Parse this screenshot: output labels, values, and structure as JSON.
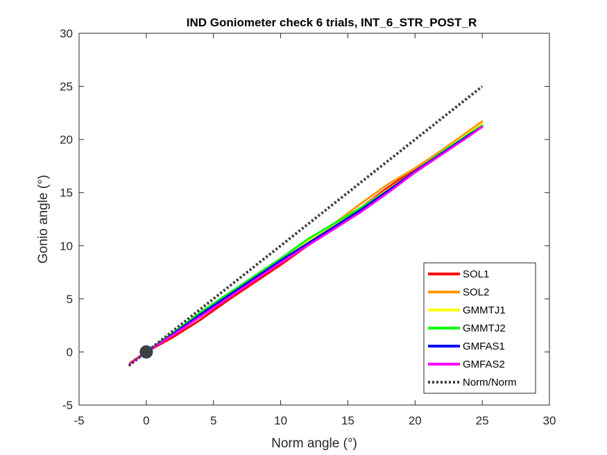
{
  "chart_data": {
    "type": "line",
    "title": "IND Goniometer check 6 trials, INT_6_STR_POST_R",
    "xlabel": "Norm angle (°)",
    "ylabel": "Gonio angle (°)",
    "xlim": [
      -5,
      30
    ],
    "ylim": [
      -5,
      30
    ],
    "xticks": [
      -5,
      0,
      5,
      10,
      15,
      20,
      25,
      30
    ],
    "yticks": [
      -5,
      0,
      5,
      10,
      15,
      20,
      25,
      30
    ],
    "grid": false,
    "legend_position": "bottom-right",
    "marker_point": {
      "x": 0,
      "y": 0,
      "color": "#404040"
    },
    "series": [
      {
        "name": "SOL1",
        "color": "#ff0000",
        "style": "solid",
        "x": [
          -1.2,
          0,
          2,
          4,
          6,
          8,
          10,
          12,
          14,
          16,
          18,
          20,
          22,
          24,
          25
        ],
        "y": [
          -1.0,
          0,
          1.4,
          3.0,
          4.8,
          6.5,
          8.2,
          10.0,
          11.8,
          13.6,
          15.5,
          17.2,
          18.8,
          20.5,
          21.3
        ]
      },
      {
        "name": "SOL2",
        "color": "#ff9900",
        "style": "solid",
        "x": [
          -1.2,
          0,
          2,
          4,
          6,
          8,
          10,
          12,
          14,
          16,
          18,
          20,
          22,
          24,
          25
        ],
        "y": [
          -1.0,
          0,
          1.7,
          3.4,
          5.1,
          6.8,
          8.5,
          10.3,
          12.1,
          14.0,
          15.8,
          17.3,
          19.0,
          20.8,
          21.7
        ]
      },
      {
        "name": "GMMTJ1",
        "color": "#ffff00",
        "style": "solid",
        "x": [
          -1.2,
          0,
          2,
          4,
          6,
          8,
          10,
          12,
          14,
          16,
          18,
          20,
          22,
          24,
          25
        ],
        "y": [
          -1.1,
          0,
          1.8,
          3.6,
          5.3,
          7.0,
          8.7,
          10.4,
          12.0,
          13.6,
          15.3,
          17.0,
          18.8,
          20.6,
          21.4
        ]
      },
      {
        "name": "GMMTJ2",
        "color": "#00ff00",
        "style": "solid",
        "x": [
          -1.2,
          0,
          2,
          4,
          6,
          8,
          10,
          12,
          14,
          16,
          18,
          20,
          22,
          24,
          25
        ],
        "y": [
          -1.1,
          0,
          1.8,
          3.7,
          5.4,
          7.1,
          8.8,
          10.6,
          12.1,
          13.6,
          15.2,
          17.0,
          18.8,
          20.5,
          21.3
        ]
      },
      {
        "name": "GMFAS1",
        "color": "#0000ff",
        "style": "solid",
        "x": [
          -1.2,
          0,
          2,
          4,
          6,
          8,
          10,
          12,
          14,
          16,
          18,
          20,
          22,
          24,
          25
        ],
        "y": [
          -1.1,
          0,
          1.7,
          3.5,
          5.2,
          6.9,
          8.6,
          10.2,
          11.8,
          13.4,
          15.2,
          17.0,
          18.7,
          20.4,
          21.2
        ]
      },
      {
        "name": "GMFAS2",
        "color": "#ff00ff",
        "style": "solid",
        "x": [
          -1.2,
          0,
          2,
          4,
          6,
          8,
          10,
          12,
          14,
          16,
          18,
          20,
          22,
          24,
          25
        ],
        "y": [
          -1.1,
          0,
          1.6,
          3.3,
          5.0,
          6.7,
          8.4,
          10.0,
          11.6,
          13.2,
          15.0,
          16.9,
          18.6,
          20.3,
          21.2
        ]
      },
      {
        "name": "Norm/Norm",
        "color": "#404040",
        "style": "dotted",
        "x": [
          -1.3,
          25
        ],
        "y": [
          -1.3,
          25
        ]
      }
    ]
  }
}
